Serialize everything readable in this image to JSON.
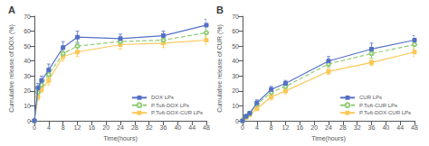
{
  "chart_data": [
    {
      "type": "line",
      "title": "A",
      "x_label": "Time(hours)",
      "y_label": "Cumulative release of DOX (%)",
      "x": [
        0,
        1,
        2,
        4,
        8,
        12,
        24,
        36,
        48
      ],
      "xlim": [
        0,
        48
      ],
      "xticks": [
        0,
        4,
        8,
        12,
        16,
        20,
        24,
        28,
        32,
        36,
        40,
        44,
        48
      ],
      "ylim": [
        0,
        70
      ],
      "yticks": [
        0,
        10,
        20,
        30,
        40,
        50,
        60,
        70
      ],
      "grid": false,
      "legend": "lower right",
      "series": [
        {
          "name": "DOX LPs",
          "marker": "square",
          "line_style": "solid",
          "values": [
            0,
            22,
            27,
            34,
            49,
            56,
            55,
            57,
            64
          ],
          "yerr": [
            0,
            3,
            3,
            4,
            4,
            4,
            3,
            3,
            4
          ]
        },
        {
          "name": "P.Tuft-DOX LPs",
          "marker": "circle",
          "line_style": "dashed",
          "values": [
            0,
            19,
            24,
            31,
            45,
            50,
            53,
            54,
            59
          ],
          "yerr": [
            0,
            2,
            2,
            3,
            3,
            3,
            3,
            3,
            3
          ]
        },
        {
          "name": "P.Tuft-DOX-CUR LPs",
          "marker": "square",
          "line_style": "solid",
          "values": [
            0,
            16,
            21,
            27,
            43,
            46,
            51,
            52,
            54
          ],
          "yerr": [
            0,
            2,
            2,
            3,
            3,
            3,
            3,
            3,
            3
          ]
        }
      ]
    },
    {
      "type": "line",
      "title": "B",
      "x_label": "Time(hours)",
      "y_label": "Cumulative release of CUR (%)",
      "x": [
        0,
        1,
        2,
        4,
        8,
        12,
        24,
        36,
        48
      ],
      "xlim": [
        0,
        48
      ],
      "xticks": [
        0,
        4,
        8,
        12,
        16,
        20,
        24,
        28,
        32,
        36,
        40,
        44,
        48
      ],
      "ylim": [
        0,
        70
      ],
      "yticks": [
        0,
        10,
        20,
        30,
        40,
        50,
        60,
        70
      ],
      "grid": false,
      "legend": "lower right",
      "series": [
        {
          "name": "CUR LPs",
          "marker": "square",
          "line_style": "solid",
          "values": [
            0,
            3,
            5,
            12,
            21,
            25,
            40,
            48,
            54
          ],
          "yerr": [
            0,
            1,
            1,
            2,
            2,
            2,
            3,
            4,
            3
          ]
        },
        {
          "name": "P.Tuft-CUR LPs",
          "marker": "circle",
          "line_style": "dashed",
          "values": [
            0,
            3,
            5,
            11,
            19,
            23,
            38,
            45,
            51
          ],
          "yerr": [
            0,
            1,
            1,
            2,
            2,
            2,
            2,
            3,
            3
          ]
        },
        {
          "name": "P.Tuft-DOX-CUR LPs",
          "marker": "square",
          "line_style": "solid",
          "values": [
            0,
            2,
            4,
            8,
            16,
            20,
            33,
            39,
            46
          ],
          "yerr": [
            0,
            1,
            1,
            1,
            2,
            2,
            2,
            2,
            3
          ]
        }
      ]
    }
  ]
}
